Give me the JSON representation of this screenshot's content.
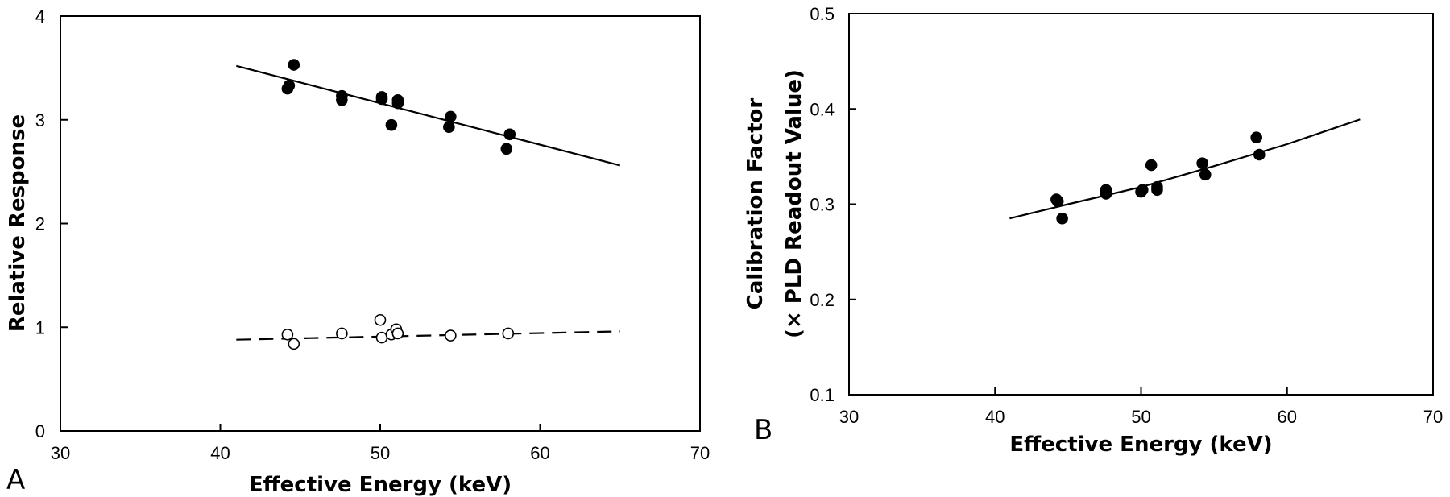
{
  "chart_data": [
    {
      "type": "scatter",
      "panel_label": "A",
      "xlabel": "Effective Energy (keV)",
      "ylabel": "Relative Response",
      "xlim": [
        30,
        70
      ],
      "ylim": [
        0,
        4
      ],
      "xticks": [
        "30",
        "40",
        "50",
        "60",
        "70"
      ],
      "yticks": [
        "0",
        "1",
        "2",
        "3",
        "4"
      ],
      "grid": false,
      "series": [
        {
          "marker": "filled-circle",
          "points": [
            [
              44.2,
              3.3
            ],
            [
              44.3,
              3.33
            ],
            [
              44.6,
              3.53
            ],
            [
              47.6,
              3.23
            ],
            [
              47.6,
              3.19
            ],
            [
              50.1,
              3.2
            ],
            [
              50.1,
              3.22
            ],
            [
              50.7,
              2.95
            ],
            [
              51.1,
              3.16
            ],
            [
              51.1,
              3.19
            ],
            [
              54.3,
              2.93
            ],
            [
              54.4,
              3.03
            ],
            [
              57.9,
              2.72
            ],
            [
              58.1,
              2.86
            ]
          ]
        },
        {
          "marker": "open-circle",
          "points": [
            [
              44.2,
              0.93
            ],
            [
              44.6,
              0.84
            ],
            [
              47.6,
              0.94
            ],
            [
              50.0,
              1.07
            ],
            [
              50.1,
              0.9
            ],
            [
              50.7,
              0.93
            ],
            [
              51.0,
              0.98
            ],
            [
              51.1,
              0.94
            ],
            [
              54.4,
              0.92
            ],
            [
              58.0,
              0.94
            ]
          ]
        }
      ],
      "fits": [
        {
          "style": "solid",
          "x": [
            41,
            65
          ],
          "y": [
            3.52,
            2.56
          ]
        },
        {
          "style": "dashed",
          "x": [
            41,
            65
          ],
          "y": [
            0.88,
            0.96
          ]
        }
      ]
    },
    {
      "type": "scatter",
      "panel_label": "B",
      "xlabel": "Effective Energy (keV)",
      "ylabel_lines": [
        "Calibration Factor",
        "(× PLD Readout Value)"
      ],
      "xlim": [
        30,
        70
      ],
      "ylim": [
        0.1,
        0.5
      ],
      "xticks": [
        "30",
        "40",
        "50",
        "60",
        "70"
      ],
      "yticks": [
        "0.1",
        "0.2",
        "0.3",
        "0.4",
        "0.5"
      ],
      "grid": false,
      "series": [
        {
          "marker": "filled-circle",
          "points": [
            [
              44.2,
              0.305
            ],
            [
              44.3,
              0.303
            ],
            [
              44.6,
              0.285
            ],
            [
              47.6,
              0.315
            ],
            [
              47.6,
              0.311
            ],
            [
              50.0,
              0.313
            ],
            [
              50.1,
              0.315
            ],
            [
              50.7,
              0.341
            ],
            [
              51.1,
              0.315
            ],
            [
              51.1,
              0.318
            ],
            [
              54.2,
              0.343
            ],
            [
              54.4,
              0.331
            ],
            [
              57.9,
              0.37
            ],
            [
              58.1,
              0.352
            ]
          ]
        }
      ],
      "fits": [
        {
          "style": "solid",
          "x": [
            41,
            45,
            50,
            55,
            60,
            65
          ],
          "y": [
            0.285,
            0.3,
            0.318,
            0.34,
            0.363,
            0.389
          ]
        }
      ]
    }
  ]
}
